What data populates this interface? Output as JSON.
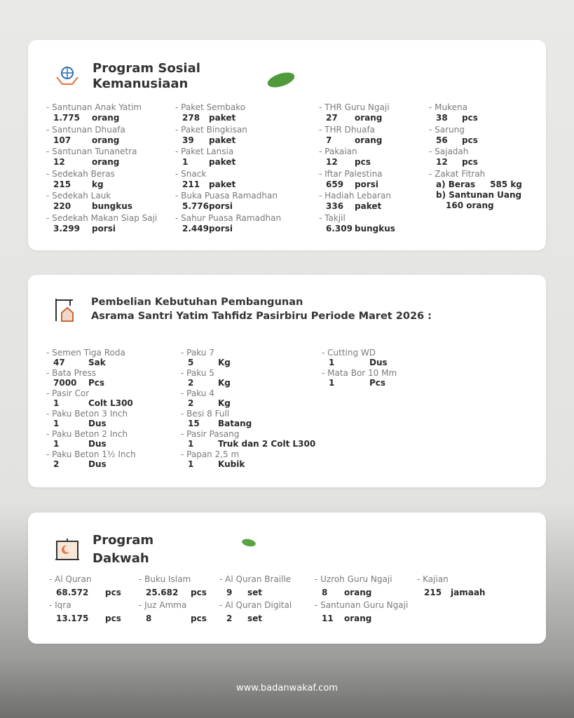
{
  "sections": [
    {
      "title": [
        "Program Sosial",
        "Kemanusiaan"
      ],
      "columns": [
        [
          {
            "label": "- Santunan Anak Yatim",
            "value": "1.775",
            "unit": "orang"
          },
          {
            "label": "- Santunan Dhuafa",
            "value": "107",
            "unit": "orang"
          },
          {
            "label": "- Santunan Tunanetra",
            "value": "12",
            "unit": "orang"
          },
          {
            "label": "- Sedekah Beras",
            "value": "215",
            "unit": "kg"
          },
          {
            "label": "- Sedekah Lauk",
            "value": "220",
            "unit": "bungkus"
          },
          {
            "label": "- Sedekah Makan Siap Saji",
            "value": "3.299",
            "unit": "porsi"
          }
        ],
        [
          {
            "label": "- Paket Sembako",
            "value": "278",
            "unit": "paket"
          },
          {
            "label": "- Paket Bingkisan",
            "value": "39",
            "unit": "paket"
          },
          {
            "label": "- Paket Lansia",
            "value": "1",
            "unit": "paket"
          },
          {
            "label": "- Snack",
            "value": "211",
            "unit": "paket"
          },
          {
            "label": "- Buka Puasa Ramadhan",
            "value": "5.776",
            "unit": "porsi"
          },
          {
            "label": "- Sahur Puasa Ramadhan",
            "value": "2.449",
            "unit": "porsi"
          }
        ],
        [
          {
            "label": "- THR Guru Ngaji",
            "value": "27",
            "unit": "orang"
          },
          {
            "label": "- THR Dhuafa",
            "value": "7",
            "unit": "orang"
          },
          {
            "label": "- Pakaian",
            "value": "12",
            "unit": "pcs"
          },
          {
            "label": "- Iftar Palestina",
            "value": "659",
            "unit": "porsi"
          },
          {
            "label": "- Hadiah Lebaran",
            "value": "336",
            "unit": "paket"
          },
          {
            "label": "- Takjil",
            "value": "6.309",
            "unit": "bungkus"
          }
        ],
        [
          {
            "label": "- Mukena",
            "value": "38",
            "unit": "pcs"
          },
          {
            "label": "- Sarung",
            "value": "56",
            "unit": "pcs"
          },
          {
            "label": "- Sajadah",
            "value": "12",
            "unit": "pcs"
          },
          {
            "label": "- Zakat Fitrah",
            "lines": [
              "a) Beras     585 kg",
              "b) Santunan Uang",
              "160 orang"
            ]
          }
        ]
      ]
    },
    {
      "title": [
        "Pembelian Kebutuhan Pembangunan",
        "Asrama Santri Yatim Tahfidz Pasirbiru Periode Maret 2026 :"
      ],
      "columns": [
        [
          {
            "label": "- Semen Tiga Roda",
            "value": "47",
            "unit": "Sak"
          },
          {
            "label": "- Bata Press",
            "value": "7000",
            "unit": "Pcs"
          },
          {
            "label": "- Pasir Cor",
            "value": "1",
            "unit": "Colt L300"
          },
          {
            "label": "- Paku Beton 3 Inch",
            "value": "1",
            "unit": "Dus"
          },
          {
            "label": "- Paku Beton 2 Inch",
            "value": "1",
            "unit": "Dus"
          },
          {
            "label": "- Paku Beton 1½ Inch",
            "value": "2",
            "unit": "Dus"
          }
        ],
        [
          {
            "label": "- Paku 7",
            "value": "5",
            "unit": "Kg"
          },
          {
            "label": "- Paku 5",
            "value": "2",
            "unit": "Kg"
          },
          {
            "label": "- Paku 4",
            "value": "2",
            "unit": "Kg"
          },
          {
            "label": "- Besi 8 Full",
            "value": "15",
            "unit": "Batang"
          },
          {
            "label": "- Pasir Pasang",
            "value": "1",
            "unit": "Truk dan 2 Colt L300"
          },
          {
            "label": "- Papan 2,5 m",
            "value": "1",
            "unit": "Kubik"
          }
        ],
        [
          {
            "label": "- Cutting WD",
            "value": "1",
            "unit": "Dus"
          },
          {
            "label": "- Mata Bor 10 Mm",
            "value": "1",
            "unit": "Pcs"
          }
        ]
      ]
    },
    {
      "title": [
        "Program",
        "Dakwah"
      ],
      "columns": [
        [
          {
            "label": "- Al Quran",
            "value": "68.572",
            "unit": "pcs"
          },
          {
            "label": "- Iqra",
            "value": "13.175",
            "unit": "pcs"
          }
        ],
        [
          {
            "label": "- Buku Islam",
            "value": "25.682",
            "unit": "pcs"
          },
          {
            "label": "- Juz Amma",
            "value": "8",
            "unit": "pcs"
          }
        ],
        [
          {
            "label": "- Al Quran Braille",
            "value": "9",
            "unit": "set"
          },
          {
            "label": "- Al Quran Digital",
            "value": "2",
            "unit": "set"
          }
        ],
        [
          {
            "label": "- Uzroh Guru Ngaji",
            "value": "8",
            "unit": "orang"
          },
          {
            "label": "- Santunan Guru Ngaji",
            "value": "11",
            "unit": "orang"
          }
        ],
        [
          {
            "label": "- Kajian",
            "value": "215",
            "unit": "jamaah"
          }
        ]
      ]
    }
  ],
  "footer": "www.badanwakaf.com"
}
